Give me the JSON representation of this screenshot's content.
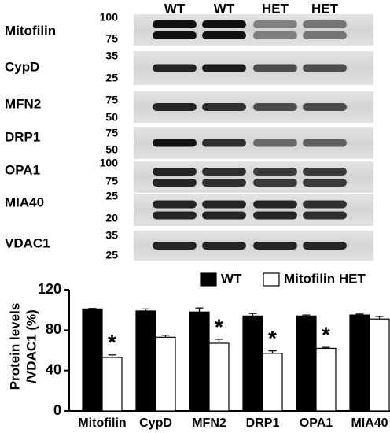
{
  "blot": {
    "lanes": [
      "WT",
      "WT",
      "HET",
      "HET"
    ],
    "rows": [
      {
        "label": "Mitofilin",
        "markers": [
          100,
          75
        ]
      },
      {
        "label": "CypD",
        "markers": [
          35,
          25
        ]
      },
      {
        "label": "MFN2",
        "markers": [
          75,
          50
        ]
      },
      {
        "label": "DRP1",
        "markers": [
          75,
          50
        ]
      },
      {
        "label": "OPA1",
        "markers": [
          100,
          75
        ]
      },
      {
        "label": "MIA40",
        "markers": [
          25,
          20
        ]
      },
      {
        "label": "VDAC1",
        "markers": [
          35,
          25
        ]
      }
    ]
  },
  "chart_data": {
    "type": "bar",
    "ylabel": [
      "Protein levels",
      "/VDAC1 (%)"
    ],
    "categories": [
      "Mitofilin",
      "CypD",
      "MFN2",
      "DRP1",
      "OPA1",
      "MIA40"
    ],
    "series": [
      {
        "name": "WT",
        "color": "#000000",
        "values": [
          101,
          99,
          98,
          94,
          94,
          95
        ],
        "errors": [
          0.5,
          2,
          4,
          2.5,
          1,
          1
        ]
      },
      {
        "name": "Mitofilin HET",
        "color": "#ffffff",
        "values": [
          53,
          73,
          67,
          57,
          62,
          91
        ],
        "errors": [
          2.5,
          2,
          4,
          2.5,
          1,
          2.5
        ]
      }
    ],
    "significance": [
      "*",
      null,
      "*",
      "*",
      "*",
      null
    ],
    "ylim": [
      0,
      120
    ],
    "yticks": [
      0,
      40,
      80,
      120
    ],
    "legend": "top-right"
  }
}
